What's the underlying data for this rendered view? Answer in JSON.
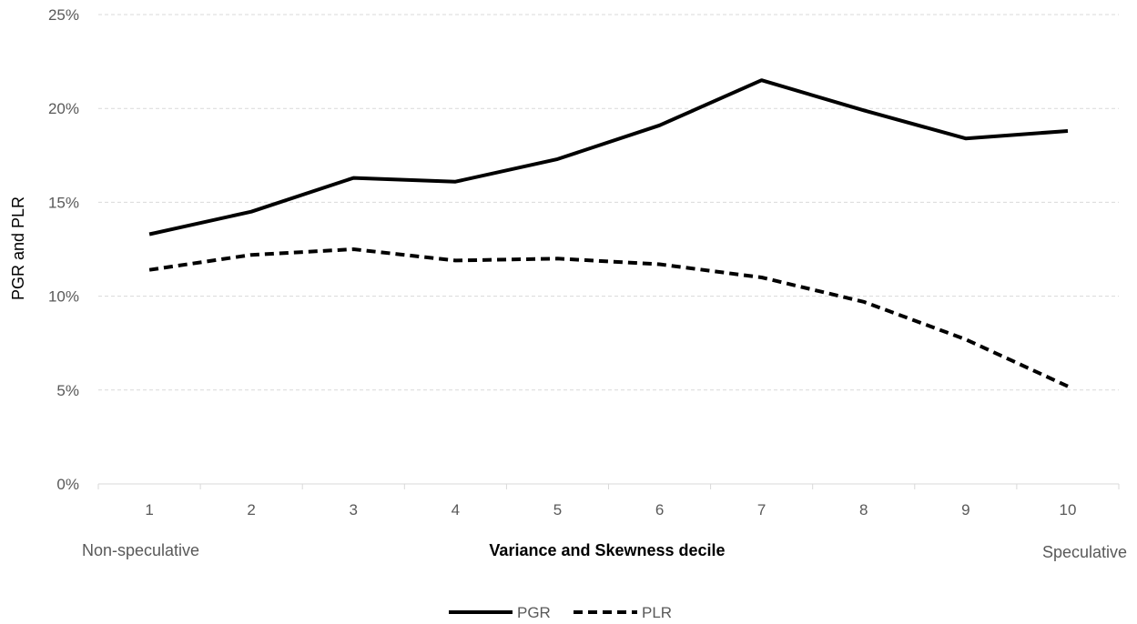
{
  "chart_data": {
    "type": "line",
    "xlabel": "Variance and Skewness decile",
    "ylabel": "PGR and PLR",
    "x_left_note": "Non-speculative",
    "x_right_note": "Speculative",
    "categories": [
      "1",
      "2",
      "3",
      "4",
      "5",
      "6",
      "7",
      "8",
      "9",
      "10"
    ],
    "yticks": [
      "0%",
      "5%",
      "10%",
      "15%",
      "20%",
      "25%"
    ],
    "ylim": [
      0,
      25
    ],
    "grid": true,
    "legend_position": "bottom",
    "series": [
      {
        "name": "PGR",
        "style": "solid",
        "color": "#000000",
        "values": [
          13.3,
          14.5,
          16.3,
          16.1,
          17.3,
          19.1,
          21.5,
          19.9,
          18.4,
          18.8
        ]
      },
      {
        "name": "PLR",
        "style": "dashed",
        "color": "#000000",
        "values": [
          11.4,
          12.2,
          12.5,
          11.9,
          12.0,
          11.7,
          11.0,
          9.7,
          7.7,
          5.2
        ]
      }
    ]
  }
}
